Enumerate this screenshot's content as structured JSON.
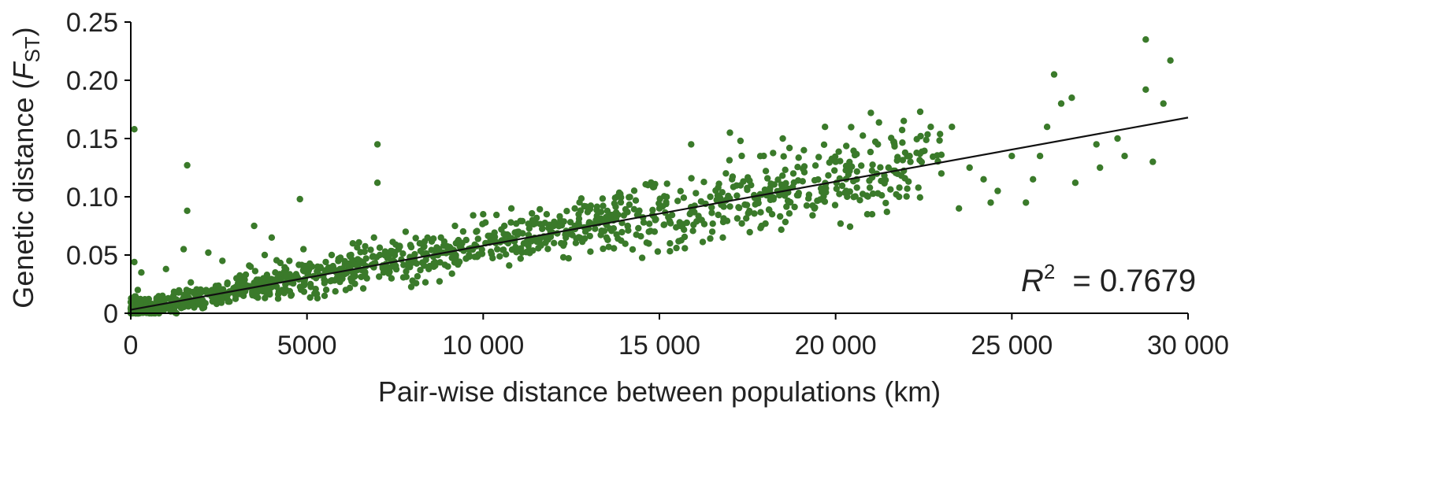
{
  "chart_data": {
    "type": "scatter",
    "xlabel": "Pair-wise distance between populations (km)",
    "ylabel_main": "Genetic distance (",
    "ylabel_var": "F",
    "ylabel_sub": "ST",
    "ylabel_close": ")",
    "xlim": [
      0,
      30000
    ],
    "ylim": [
      0,
      0.25
    ],
    "x_ticks": [
      0,
      5000,
      10000,
      15000,
      20000,
      25000,
      30000
    ],
    "x_tick_labels": [
      "0",
      "5000",
      "10 000",
      "15 000",
      "20 000",
      "25 000",
      "30 000"
    ],
    "y_ticks": [
      0,
      0.05,
      0.1,
      0.15,
      0.2,
      0.25
    ],
    "y_tick_labels": [
      "0",
      "0.05",
      "0.10",
      "0.15",
      "0.20",
      "0.25"
    ],
    "r2_label": "R",
    "r2_sup": "2",
    "r2_value": "= 0.7679",
    "fit": {
      "x": [
        0,
        30000
      ],
      "y": [
        0.003,
        0.168
      ]
    },
    "point_color": "#3a7a2a",
    "points": [
      [
        100,
        0.158
      ],
      [
        1600,
        0.127
      ],
      [
        1600,
        0.088
      ],
      [
        4800,
        0.098
      ],
      [
        7000,
        0.145
      ],
      [
        7000,
        0.112
      ],
      [
        4000,
        0.065
      ],
      [
        3500,
        0.075
      ],
      [
        100,
        0.044
      ],
      [
        300,
        0.035
      ],
      [
        1000,
        0.038
      ],
      [
        1500,
        0.055
      ],
      [
        2200,
        0.052
      ],
      [
        2600,
        0.045
      ],
      [
        200,
        0.02
      ],
      [
        400,
        0.012
      ],
      [
        600,
        0.008
      ],
      [
        900,
        0.015
      ],
      [
        1200,
        0.01
      ],
      [
        1800,
        0.005
      ],
      [
        2000,
        0.018
      ],
      [
        2500,
        0.022
      ],
      [
        2800,
        0.01
      ],
      [
        3000,
        0.03
      ],
      [
        3200,
        0.015
      ],
      [
        3400,
        0.04
      ],
      [
        3600,
        0.025
      ],
      [
        3800,
        0.05
      ],
      [
        4100,
        0.035
      ],
      [
        4300,
        0.02
      ],
      [
        4500,
        0.045
      ],
      [
        4700,
        0.03
      ],
      [
        4900,
        0.055
      ],
      [
        5100,
        0.025
      ],
      [
        5300,
        0.04
      ],
      [
        5500,
        0.015
      ],
      [
        5700,
        0.05
      ],
      [
        5900,
        0.035
      ],
      [
        6100,
        0.02
      ],
      [
        6300,
        0.06
      ],
      [
        6500,
        0.045
      ],
      [
        6700,
        0.03
      ],
      [
        6900,
        0.065
      ],
      [
        7200,
        0.05
      ],
      [
        7400,
        0.04
      ],
      [
        7600,
        0.055
      ],
      [
        7800,
        0.07
      ],
      [
        8000,
        0.045
      ],
      [
        8200,
        0.06
      ],
      [
        8400,
        0.05
      ],
      [
        8600,
        0.04
      ],
      [
        8800,
        0.065
      ],
      [
        9000,
        0.055
      ],
      [
        9200,
        0.075
      ],
      [
        9400,
        0.06
      ],
      [
        9600,
        0.05
      ],
      [
        9800,
        0.07
      ],
      [
        10000,
        0.085
      ],
      [
        10200,
        0.065
      ],
      [
        10400,
        0.055
      ],
      [
        10600,
        0.075
      ],
      [
        10800,
        0.09
      ],
      [
        11000,
        0.07
      ],
      [
        11200,
        0.06
      ],
      [
        11400,
        0.08
      ],
      [
        11600,
        0.065
      ],
      [
        11800,
        0.085
      ],
      [
        12000,
        0.075
      ],
      [
        12300,
        0.06
      ],
      [
        12600,
        0.09
      ],
      [
        12900,
        0.07
      ],
      [
        13200,
        0.08
      ],
      [
        13500,
        0.065
      ],
      [
        13800,
        0.1
      ],
      [
        14100,
        0.075
      ],
      [
        14400,
        0.085
      ],
      [
        14700,
        0.07
      ],
      [
        15000,
        0.09
      ],
      [
        15300,
        0.06
      ],
      [
        15600,
        0.075
      ],
      [
        15900,
        0.145
      ],
      [
        16200,
        0.08
      ],
      [
        16500,
        0.07
      ],
      [
        16800,
        0.065
      ],
      [
        17000,
        0.155
      ],
      [
        17300,
        0.148
      ],
      [
        17600,
        0.11
      ],
      [
        17900,
        0.075
      ],
      [
        18200,
        0.085
      ],
      [
        18500,
        0.15
      ],
      [
        18800,
        0.12
      ],
      [
        19100,
        0.14
      ],
      [
        19400,
        0.09
      ],
      [
        19700,
        0.16
      ],
      [
        20000,
        0.13
      ],
      [
        20300,
        0.105
      ],
      [
        20600,
        0.115
      ],
      [
        20900,
        0.085
      ],
      [
        21000,
        0.172
      ],
      [
        21200,
        0.145
      ],
      [
        21500,
        0.125
      ],
      [
        21800,
        0.1
      ],
      [
        22100,
        0.135
      ],
      [
        22400,
        0.173
      ],
      [
        22700,
        0.16
      ],
      [
        23000,
        0.12
      ],
      [
        23300,
        0.16
      ],
      [
        23500,
        0.09
      ],
      [
        23800,
        0.125
      ],
      [
        24200,
        0.115
      ],
      [
        24600,
        0.105
      ],
      [
        25000,
        0.135
      ],
      [
        25400,
        0.095
      ],
      [
        25800,
        0.135
      ],
      [
        26200,
        0.205
      ],
      [
        26400,
        0.18
      ],
      [
        26700,
        0.185
      ],
      [
        26800,
        0.112
      ],
      [
        27500,
        0.125
      ],
      [
        28000,
        0.15
      ],
      [
        28200,
        0.135
      ],
      [
        28800,
        0.235
      ],
      [
        28800,
        0.192
      ],
      [
        29000,
        0.13
      ],
      [
        29300,
        0.18
      ],
      [
        29500,
        0.217
      ],
      [
        27400,
        0.145
      ],
      [
        26000,
        0.16
      ],
      [
        25600,
        0.115
      ],
      [
        24400,
        0.095
      ]
    ]
  }
}
